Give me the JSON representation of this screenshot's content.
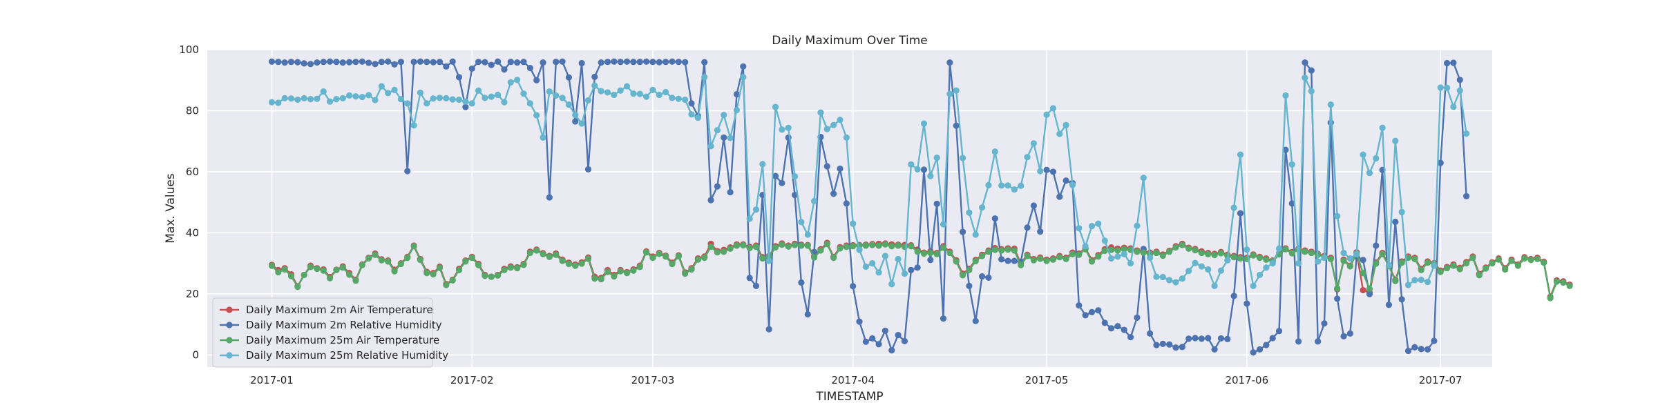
{
  "chart_data": {
    "type": "line",
    "title": "Daily Maximum Over Time",
    "xlabel": "TIMESTAMP",
    "ylabel": "Max. Values",
    "x_start": "2017-01-01",
    "x_end": "2017-06-30",
    "xlim": [
      "2016-12-22",
      "2017-07-09"
    ],
    "ylim": [
      -4,
      100
    ],
    "yticks": [
      0,
      20,
      40,
      60,
      80,
      100
    ],
    "xticks": [
      "2017-01",
      "2017-02",
      "2017-03",
      "2017-04",
      "2017-05",
      "2017-06",
      "2017-07"
    ],
    "grid": true,
    "legend_position": "lower-left",
    "series": [
      {
        "name": "Daily Maximum 2m Air Temperature",
        "color": "#c44e52",
        "values": [
          29.5,
          27.8,
          28.4,
          26.4,
          22.5,
          26.2,
          29.2,
          28.4,
          28.0,
          25.5,
          27.9,
          29.0,
          26.8,
          24.6,
          29.6,
          31.8,
          33.2,
          31.3,
          30.9,
          27.9,
          30.0,
          32.1,
          35.8,
          31.4,
          27.2,
          26.8,
          28.9,
          23.2,
          24.6,
          28.2,
          30.9,
          32.1,
          29.8,
          26.2,
          25.6,
          26.2,
          28.2,
          29.0,
          28.7,
          29.8,
          33.8,
          34.5,
          33.3,
          32.4,
          33.2,
          31.2,
          30.2,
          29.6,
          30.3,
          31.9,
          25.6,
          25.2,
          27.8,
          26.2,
          27.8,
          27.1,
          28.0,
          29.2,
          33.9,
          32.2,
          33.4,
          32.5,
          30.2,
          32.6,
          27.0,
          28.4,
          31.6,
          32.2,
          36.4,
          34.0,
          34.4,
          35.2,
          36.2,
          36.2,
          35.4,
          35.8,
          32.0,
          32.4,
          35.6,
          36.5,
          35.8,
          36.4,
          36.1,
          36.0,
          32.4,
          34.6,
          36.7,
          32.1,
          35.3,
          35.8,
          35.9,
          36.0,
          36.1,
          36.3,
          36.4,
          36.5,
          36.2,
          36.1,
          36.0,
          35.9,
          34.5,
          33.5,
          33.9,
          33.4,
          35.6,
          33.8,
          31.0,
          26.6,
          28.2,
          31.1,
          32.8,
          34.2,
          35.0,
          34.6,
          34.9,
          34.8,
          29.9,
          32.8,
          31.4,
          31.9,
          31.2,
          31.6,
          32.4,
          31.8,
          33.5,
          33.2,
          35.0,
          31.0,
          32.7,
          34.6,
          35.2,
          34.8,
          35.1,
          34.9,
          34.2,
          33.9,
          33.5,
          33.8,
          32.9,
          34.1,
          35.6,
          36.4,
          35.1,
          34.7,
          33.9,
          33.4,
          33.1,
          33.7,
          32.8,
          32.4,
          32.0,
          31.8,
          32.9,
          32.1,
          31.6,
          30.9,
          33.3,
          34.9,
          33.7,
          34.8,
          34.2,
          33.8,
          33.1,
          32.4,
          31.8,
          21.5,
          31.2,
          29.2,
          33.6,
          21.2,
          20.5,
          30.3,
          33.4,
          29.3,
          24.6,
          30.6,
          32.2,
          31.8,
          28.2,
          30.6,
          30.1,
          27.6,
          28.8,
          29.6,
          28.5,
          30.4,
          32.2,
          26.5,
          28.6,
          30.3,
          31.6,
          28.4,
          31.2,
          29.6,
          32.0,
          31.4,
          31.8,
          30.5,
          19.0,
          24.4,
          24.1,
          23.0
        ]
      },
      {
        "name": "Daily Maximum 2m Relative Humidity",
        "color": "#4c72b0",
        "values": [
          96.1,
          96.0,
          95.8,
          96.0,
          95.9,
          95.5,
          95.3,
          95.8,
          96.0,
          96.1,
          96.0,
          95.8,
          95.9,
          96.0,
          96.1,
          95.7,
          95.3,
          96.0,
          96.1,
          95.2,
          96.0,
          60.2,
          96.0,
          96.1,
          96.0,
          95.9,
          96.0,
          94.5,
          96.1,
          91.0,
          81.2,
          93.8,
          96.0,
          95.9,
          95.0,
          96.1,
          93.5,
          96.0,
          95.8,
          96.0,
          94.0,
          90.0,
          95.8,
          51.6,
          96.0,
          96.1,
          90.9,
          76.5,
          95.6,
          60.8,
          91.1,
          95.8,
          96.0,
          96.1,
          96.0,
          96.1,
          96.0,
          96.0,
          96.1,
          96.0,
          95.9,
          96.0,
          96.1,
          96.0,
          95.9,
          82.4,
          78.3,
          95.9,
          50.7,
          55.2,
          71.2,
          53.3,
          85.4,
          94.5,
          25.2,
          22.6,
          52.4,
          8.4,
          58.6,
          56.3,
          71.2,
          52.4,
          23.7,
          13.3,
          33.7,
          71.4,
          61.8,
          52.8,
          61.0,
          49.6,
          22.5,
          10.9,
          4.3,
          5.4,
          3.5,
          7.9,
          1.5,
          6.5,
          4.5,
          27.8,
          28.6,
          60.7,
          31.1,
          49.5,
          11.9,
          95.8,
          75.1,
          40.3,
          22.6,
          11.1,
          25.7,
          25.3,
          44.7,
          31.3,
          30.8,
          30.8,
          30.5,
          41.7,
          48.9,
          40.4,
          60.6,
          60.0,
          51.8,
          57.1,
          56.3,
          16.2,
          13.0,
          14.0,
          14.6,
          10.5,
          8.7,
          9.4,
          8.2,
          5.8,
          12.2,
          34.7,
          7.0,
          3.2,
          3.6,
          3.4,
          2.4,
          2.6,
          5.3,
          5.5,
          5.3,
          5.5,
          1.8,
          5.4,
          5.2,
          19.3,
          46.4,
          16.8,
          0.8,
          1.8,
          3.2,
          5.5,
          7.8,
          67.2,
          49.6,
          4.4,
          95.8,
          93.2,
          4.4,
          10.3,
          76.1,
          18.4,
          6.1,
          7.0,
          32.2,
          31.1,
          19.9,
          35.8,
          60.6,
          16.4,
          43.6,
          18.2,
          1.3,
          2.5,
          1.9,
          1.8,
          4.6,
          62.9,
          95.6,
          95.7,
          90.1,
          52.0
        ]
      },
      {
        "name": "Daily Maximum 25m Air Temperature",
        "color": "#55a868",
        "values": [
          29.2,
          27.1,
          28.0,
          25.8,
          22.3,
          26.2,
          28.8,
          28.2,
          27.6,
          25.1,
          27.8,
          28.6,
          26.3,
          24.3,
          29.4,
          31.6,
          32.8,
          31.0,
          30.6,
          27.4,
          29.8,
          31.8,
          35.6,
          31.1,
          26.8,
          26.4,
          28.5,
          22.9,
          24.4,
          27.8,
          30.6,
          31.8,
          29.4,
          25.9,
          25.6,
          26.0,
          27.8,
          28.6,
          28.4,
          29.5,
          33.4,
          34.2,
          33.0,
          32.1,
          32.8,
          30.8,
          29.8,
          29.2,
          29.9,
          31.5,
          25.0,
          24.8,
          27.2,
          25.7,
          27.4,
          26.8,
          27.6,
          28.8,
          33.6,
          31.8,
          33.1,
          32.2,
          29.8,
          32.3,
          26.6,
          28.0,
          31.2,
          31.8,
          35.4,
          33.6,
          33.8,
          34.8,
          35.8,
          35.9,
          35.0,
          35.4,
          31.6,
          32.1,
          35.2,
          36.1,
          35.5,
          36.0,
          35.8,
          35.8,
          31.9,
          34.2,
          36.3,
          31.8,
          34.9,
          35.4,
          35.6,
          35.8,
          35.8,
          36.0,
          35.8,
          36.2,
          35.6,
          35.8,
          35.4,
          35.6,
          33.8,
          33.2,
          33.4,
          33.0,
          35.1,
          33.4,
          30.6,
          26.1,
          27.8,
          30.7,
          32.4,
          33.8,
          34.4,
          34.2,
          34.5,
          34.2,
          29.4,
          32.4,
          31.0,
          31.5,
          30.8,
          31.2,
          32.0,
          31.4,
          33.0,
          32.8,
          34.6,
          30.6,
          32.2,
          34.1,
          34.4,
          34.2,
          34.6,
          34.4,
          33.8,
          33.5,
          33.0,
          33.4,
          32.5,
          33.8,
          35.2,
          36.0,
          34.8,
          34.3,
          33.4,
          33.0,
          32.7,
          33.3,
          32.4,
          32.0,
          31.6,
          31.4,
          32.6,
          31.8,
          31.2,
          30.6,
          32.9,
          34.6,
          33.3,
          34.5,
          33.8,
          33.4,
          32.8,
          32.0,
          31.4,
          21.8,
          30.8,
          29.0,
          33.2,
          26.8,
          21.6,
          29.9,
          33.0,
          29.1,
          24.2,
          30.2,
          31.8,
          31.4,
          27.8,
          30.2,
          29.8,
          27.2,
          28.4,
          29.2,
          28.1,
          30.0,
          31.8,
          26.1,
          28.3,
          30.0,
          31.2,
          28.0,
          30.8,
          29.2,
          31.6,
          31.1,
          31.4,
          30.2,
          18.6,
          24.0,
          23.7,
          22.6
        ]
      },
      {
        "name": "Daily Maximum 25m Relative Humidity",
        "color": "#64b5cd",
        "values": [
          82.8,
          82.6,
          84.1,
          84.0,
          83.6,
          84.1,
          83.8,
          83.9,
          86.3,
          83.0,
          83.8,
          84.1,
          85.0,
          84.7,
          84.5,
          85.1,
          83.5,
          88.0,
          85.8,
          86.8,
          83.8,
          82.4,
          75.2,
          85.9,
          82.4,
          84.0,
          84.2,
          84.1,
          83.7,
          83.6,
          83.0,
          82.4,
          86.6,
          84.2,
          84.6,
          85.2,
          82.8,
          89.3,
          90.1,
          85.6,
          82.4,
          78.5,
          71.2,
          86.3,
          85.0,
          84.2,
          82.0,
          78.6,
          75.8,
          83.4,
          88.2,
          86.4,
          86.0,
          85.2,
          86.6,
          88.0,
          85.6,
          85.5,
          84.6,
          86.8,
          85.2,
          86.1,
          84.2,
          83.9,
          83.6,
          78.8,
          77.7,
          91.0,
          68.4,
          73.6,
          78.6,
          71.1,
          80.2,
          91.0,
          44.6,
          47.6,
          62.5,
          30.8,
          81.2,
          73.8,
          74.4,
          58.5,
          43.5,
          39.4,
          50.4,
          79.4,
          74.0,
          75.3,
          77.0,
          71.2,
          43.0,
          34.4,
          28.9,
          30.0,
          27.0,
          32.4,
          23.2,
          31.4,
          26.6,
          62.4,
          60.8,
          75.8,
          58.6,
          64.6,
          42.8,
          85.5,
          86.6,
          64.5,
          46.6,
          39.4,
          48.3,
          55.6,
          66.6,
          55.5,
          55.5,
          54.2,
          55.4,
          64.8,
          69.3,
          60.2,
          78.7,
          80.8,
          72.4,
          75.3,
          55.7,
          41.5,
          35.6,
          42.2,
          43.0,
          37.4,
          31.6,
          32.2,
          33.0,
          30.0,
          42.3,
          58.0,
          31.8,
          25.6,
          25.5,
          24.5,
          23.8,
          25.0,
          27.5,
          30.1,
          29.0,
          28.0,
          22.6,
          27.6,
          31.0,
          48.2,
          65.6,
          34.5,
          22.6,
          26.2,
          28.6,
          30.0,
          34.8,
          85.0,
          62.4,
          30.0,
          90.8,
          86.4,
          30.6,
          31.8,
          82.0,
          45.5,
          33.4,
          31.6,
          33.0,
          65.6,
          59.6,
          64.4,
          74.4,
          29.4,
          70.1,
          46.8,
          22.9,
          24.5,
          24.6,
          23.9,
          29.2,
          87.6,
          87.5,
          81.3,
          86.6,
          72.5
        ]
      }
    ]
  }
}
